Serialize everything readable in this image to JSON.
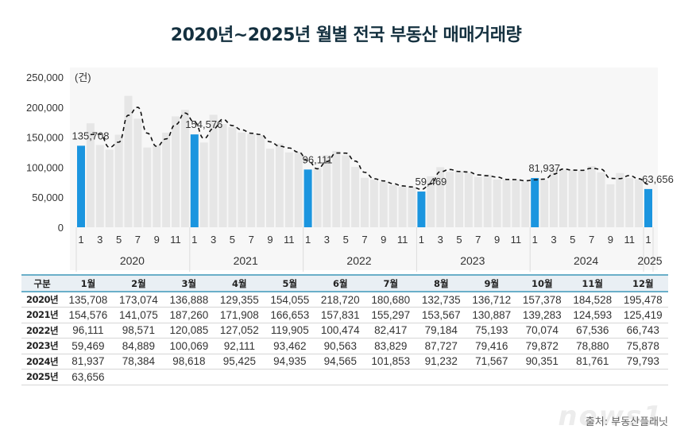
{
  "title": "2020년~2025년 월별 전국 부동산 매매거래량",
  "chart_data": {
    "type": "bar",
    "title": "2020년~2025년 월별 전국 부동산 매매거래량",
    "ylabel": "(건)",
    "ylim": [
      0,
      250000
    ],
    "yticks": [
      0,
      50000,
      100000,
      150000,
      200000,
      250000
    ],
    "ytick_labels": [
      "0",
      "50,000",
      "100,000",
      "150,000",
      "200,000",
      "250,000"
    ],
    "x_tick_months": [
      "1",
      "3",
      "5",
      "7",
      "9",
      "11"
    ],
    "years": [
      "2020",
      "2021",
      "2022",
      "2023",
      "2024",
      "2025"
    ],
    "series": [
      {
        "name": "2020",
        "values": [
          135708,
          173074,
          136888,
          129355,
          154055,
          218720,
          180680,
          132735,
          136712,
          157378,
          184528,
          195478
        ]
      },
      {
        "name": "2021",
        "values": [
          154576,
          141075,
          187260,
          171908,
          166653,
          157831,
          155297,
          153567,
          130887,
          139283,
          124593,
          125419
        ]
      },
      {
        "name": "2022",
        "values": [
          96111,
          98571,
          120085,
          127052,
          119905,
          100474,
          82417,
          79184,
          75193,
          70074,
          67536,
          66743
        ]
      },
      {
        "name": "2023",
        "values": [
          59469,
          84889,
          100069,
          92111,
          93462,
          90563,
          83829,
          87727,
          79416,
          79872,
          78880,
          75878
        ]
      },
      {
        "name": "2024",
        "values": [
          81937,
          78384,
          98618,
          95425,
          94935,
          94565,
          101853,
          91232,
          71567,
          90351,
          81761,
          79793
        ]
      },
      {
        "name": "2025",
        "values": [
          63656
        ]
      }
    ],
    "highlight": "January of each year",
    "highlight_labels": [
      "135,708",
      "154,576",
      "96,111",
      "59,469",
      "81,937",
      "63,656"
    ],
    "trend_line": "dashed 2-month moving average",
    "colors": {
      "bar": "#e6e6e6",
      "highlight": "#1b95df",
      "trend": "#111111",
      "panel": "#f7f7f7"
    },
    "grid": false,
    "legend": "none"
  },
  "table": {
    "headers": [
      "구분",
      "1월",
      "2월",
      "3월",
      "4월",
      "5월",
      "6월",
      "7월",
      "8월",
      "9월",
      "10월",
      "11월",
      "12월"
    ],
    "rows": [
      {
        "label": "2020년",
        "cells": [
          "135,708",
          "173,074",
          "136,888",
          "129,355",
          "154,055",
          "218,720",
          "180,680",
          "132,735",
          "136,712",
          "157,378",
          "184,528",
          "195,478"
        ]
      },
      {
        "label": "2021년",
        "cells": [
          "154,576",
          "141,075",
          "187,260",
          "171,908",
          "166,653",
          "157,831",
          "155,297",
          "153,567",
          "130,887",
          "139,283",
          "124,593",
          "125,419"
        ]
      },
      {
        "label": "2022년",
        "cells": [
          "96,111",
          "98,571",
          "120,085",
          "127,052",
          "119,905",
          "100,474",
          "82,417",
          "79,184",
          "75,193",
          "70,074",
          "67,536",
          "66,743"
        ]
      },
      {
        "label": "2023년",
        "cells": [
          "59,469",
          "84,889",
          "100,069",
          "92,111",
          "93,462",
          "90,563",
          "83,829",
          "87,727",
          "79,416",
          "79,872",
          "78,880",
          "75,878"
        ]
      },
      {
        "label": "2024년",
        "cells": [
          "81,937",
          "78,384",
          "98,618",
          "95,425",
          "94,935",
          "94,565",
          "101,853",
          "91,232",
          "71,567",
          "90,351",
          "81,761",
          "79,793"
        ]
      },
      {
        "label": "2025년",
        "cells": [
          "63,656",
          "",
          "",
          "",
          "",
          "",
          "",
          "",
          "",
          "",
          "",
          ""
        ]
      }
    ]
  },
  "source": "출처: 부동산플래닛",
  "watermark": "news1"
}
